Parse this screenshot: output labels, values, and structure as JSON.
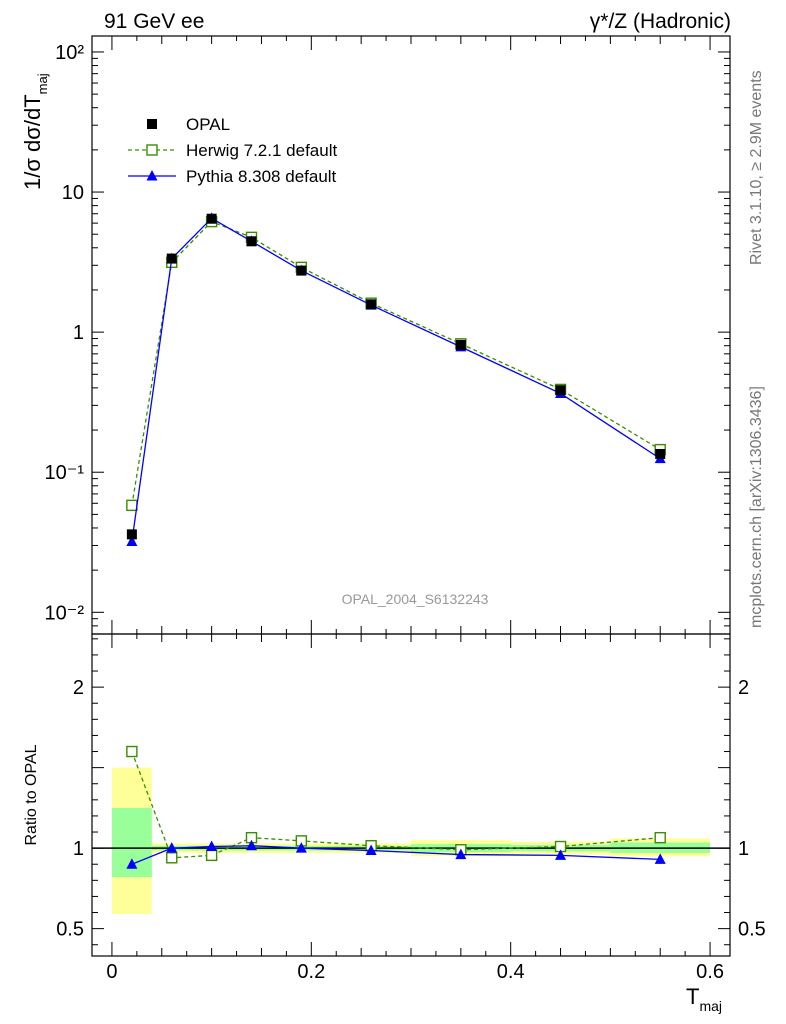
{
  "header": {
    "left": "91 GeV ee",
    "right": "γ*/Z (Hadronic)"
  },
  "side": {
    "top": "Rivet 3.1.10, ≥ 2.9M events",
    "bottom": "mcplots.cern.ch [arXiv:1306.3436]"
  },
  "analysis_label": "OPAL_2004_S6132243",
  "chart_data": [
    {
      "type": "scatter",
      "role": "main",
      "ylabel": "1/σ dσ/dT_maj",
      "yscale": "log",
      "ylim": [
        0.007,
        130
      ],
      "xlim": [
        -0.02,
        0.62
      ],
      "y_ticks": [
        {
          "value": 0.01,
          "label": "10⁻²"
        },
        {
          "value": 0.1,
          "label": "10⁻¹"
        },
        {
          "value": 1,
          "label": "1"
        },
        {
          "value": 10,
          "label": "10"
        },
        {
          "value": 100,
          "label": "10²"
        }
      ],
      "legend_position": "top-left",
      "series": [
        {
          "name": "OPAL",
          "style": "data",
          "color": "#000000",
          "x": [
            0.02,
            0.06,
            0.1,
            0.14,
            0.19,
            0.26,
            0.35,
            0.45,
            0.55
          ],
          "y": [
            0.036,
            3.35,
            6.45,
            4.45,
            2.75,
            1.58,
            0.81,
            0.385,
            0.135
          ]
        },
        {
          "name": "Herwig 7.2.1 default",
          "style": "dashed-open-square",
          "color": "#3a8c00",
          "x": [
            0.02,
            0.06,
            0.1,
            0.14,
            0.19,
            0.26,
            0.35,
            0.45,
            0.55
          ],
          "y": [
            0.058,
            3.15,
            6.15,
            4.75,
            2.9,
            1.61,
            0.825,
            0.39,
            0.145
          ]
        },
        {
          "name": "Pythia 8.308 default",
          "style": "solid-filled-triangle",
          "color": "#0000ff",
          "x": [
            0.02,
            0.06,
            0.1,
            0.14,
            0.19,
            0.26,
            0.35,
            0.45,
            0.55
          ],
          "y": [
            0.032,
            3.35,
            6.5,
            4.45,
            2.75,
            1.56,
            0.785,
            0.365,
            0.125
          ]
        }
      ]
    },
    {
      "type": "scatter",
      "role": "ratio",
      "ylabel": "Ratio to OPAL",
      "xlabel": "T_maj",
      "ylim": [
        0.33,
        2.33
      ],
      "xlim": [
        -0.02,
        0.62
      ],
      "y_ticks": [
        0.5,
        1,
        2
      ],
      "x_ticks": [
        0,
        0.2,
        0.4,
        0.6
      ],
      "x_tick_labels": [
        "0",
        "0.2",
        "0.4",
        "0.6"
      ],
      "reference_line": 1,
      "uncertainty_bands": {
        "colors": {
          "outer": "#ffff99",
          "inner": "#99ff99"
        },
        "bins": [
          {
            "x0": 0.0,
            "x1": 0.04,
            "outer": [
              0.59,
              1.5
            ],
            "inner": [
              0.82,
              1.25
            ]
          },
          {
            "x0": 0.04,
            "x1": 0.08,
            "outer": [
              0.97,
              1.03
            ],
            "inner": [
              0.985,
              1.015
            ]
          },
          {
            "x0": 0.08,
            "x1": 0.12,
            "outer": [
              0.97,
              1.03
            ],
            "inner": [
              0.985,
              1.015
            ]
          },
          {
            "x0": 0.12,
            "x1": 0.16,
            "outer": [
              0.97,
              1.03
            ],
            "inner": [
              0.985,
              1.015
            ]
          },
          {
            "x0": 0.16,
            "x1": 0.22,
            "outer": [
              0.97,
              1.03
            ],
            "inner": [
              0.985,
              1.015
            ]
          },
          {
            "x0": 0.22,
            "x1": 0.3,
            "outer": [
              0.97,
              1.03
            ],
            "inner": [
              0.985,
              1.015
            ]
          },
          {
            "x0": 0.3,
            "x1": 0.4,
            "outer": [
              0.95,
              1.05
            ],
            "inner": [
              0.975,
              1.025
            ]
          },
          {
            "x0": 0.4,
            "x1": 0.5,
            "outer": [
              0.96,
              1.04
            ],
            "inner": [
              0.98,
              1.02
            ]
          },
          {
            "x0": 0.5,
            "x1": 0.6,
            "outer": [
              0.95,
              1.06
            ],
            "inner": [
              0.97,
              1.035
            ]
          }
        ]
      },
      "series": [
        {
          "name": "Herwig 7.2.1 default",
          "style": "dashed-open-square",
          "color": "#3a8c00",
          "x": [
            0.02,
            0.06,
            0.1,
            0.14,
            0.19,
            0.26,
            0.35,
            0.45,
            0.55
          ],
          "y": [
            1.6,
            0.94,
            0.955,
            1.065,
            1.045,
            1.015,
            0.99,
            1.01,
            1.065
          ]
        },
        {
          "name": "Pythia 8.308 default",
          "style": "solid-filled-triangle",
          "color": "#0000ff",
          "x": [
            0.02,
            0.06,
            0.1,
            0.14,
            0.19,
            0.26,
            0.35,
            0.45,
            0.55
          ],
          "y": [
            0.9,
            1.0,
            1.01,
            1.015,
            1.0,
            0.985,
            0.96,
            0.955,
            0.93
          ]
        }
      ]
    }
  ]
}
